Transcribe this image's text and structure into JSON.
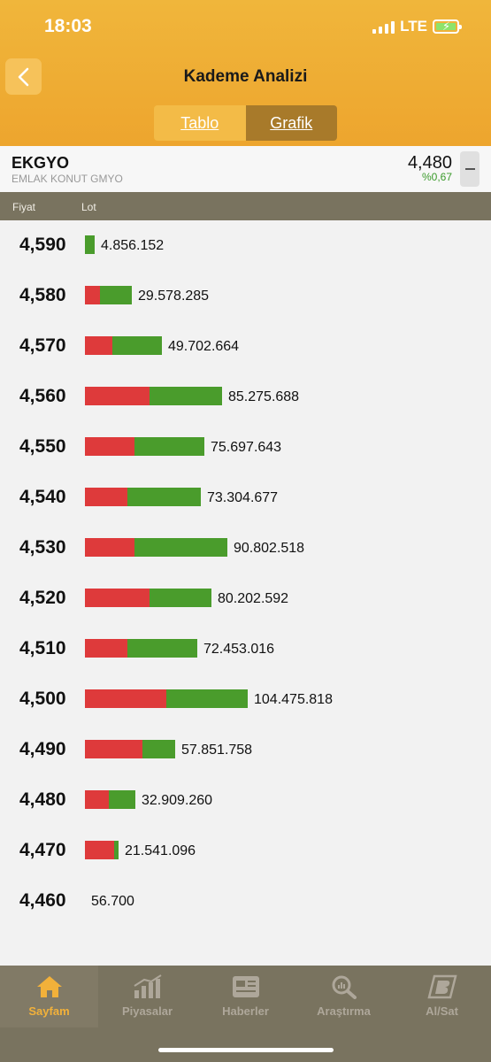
{
  "status_bar": {
    "time": "18:03",
    "network": "LTE"
  },
  "header": {
    "title": "Kademe Analizi"
  },
  "segments": {
    "table": "Tablo",
    "chart": "Grafik"
  },
  "stock": {
    "code": "EKGYO",
    "name": "EMLAK KONUT GMYO",
    "price": "4,480",
    "change": "%0,67"
  },
  "columns": {
    "price": "Fiyat",
    "lot": "Lot"
  },
  "colors": {
    "accent": "#eda52e",
    "sell": "#de3a3b",
    "buy": "#4a9c2c",
    "up": "#3a9a2a",
    "tabbar": "#79735f"
  },
  "rows": [
    {
      "price": "4,590",
      "lot": "4.856.152",
      "sell_share": 0.0,
      "buy_share": 0.052
    },
    {
      "price": "4,580",
      "lot": "29.578.285",
      "sell_share": 0.079,
      "buy_share": 0.168
    },
    {
      "price": "4,570",
      "lot": "49.702.664",
      "sell_share": 0.146,
      "buy_share": 0.262
    },
    {
      "price": "4,560",
      "lot": "85.275.688",
      "sell_share": 0.34,
      "buy_share": 0.382
    },
    {
      "price": "4,550",
      "lot": "75.697.643",
      "sell_share": 0.262,
      "buy_share": 0.366
    },
    {
      "price": "4,540",
      "lot": "73.304.677",
      "sell_share": 0.225,
      "buy_share": 0.387
    },
    {
      "price": "4,530",
      "lot": "90.802.518",
      "sell_share": 0.262,
      "buy_share": 0.487
    },
    {
      "price": "4,520",
      "lot": "80.202.592",
      "sell_share": 0.34,
      "buy_share": 0.325
    },
    {
      "price": "4,510",
      "lot": "72.453.016",
      "sell_share": 0.225,
      "buy_share": 0.366
    },
    {
      "price": "4,500",
      "lot": "104.475.818",
      "sell_share": 0.429,
      "buy_share": 0.429
    },
    {
      "price": "4,490",
      "lot": "57.851.758",
      "sell_share": 0.304,
      "buy_share": 0.173
    },
    {
      "price": "4,480",
      "lot": "32.909.260",
      "sell_share": 0.126,
      "buy_share": 0.141
    },
    {
      "price": "4,470",
      "lot": "21.541.096",
      "sell_share": 0.152,
      "buy_share": 0.021
    },
    {
      "price": "4,460",
      "lot": "56.700",
      "sell_share": 0.0,
      "buy_share": 0.0
    }
  ],
  "tabbar": {
    "items": [
      {
        "label": "Sayfam",
        "icon": "home-icon",
        "active": true
      },
      {
        "label": "Piyasalar",
        "icon": "market-chart-icon",
        "active": false
      },
      {
        "label": "Haberler",
        "icon": "news-icon",
        "active": false
      },
      {
        "label": "Araştırma",
        "icon": "research-icon",
        "active": false
      },
      {
        "label": "Al/Sat",
        "icon": "trade-icon",
        "active": false
      }
    ]
  }
}
